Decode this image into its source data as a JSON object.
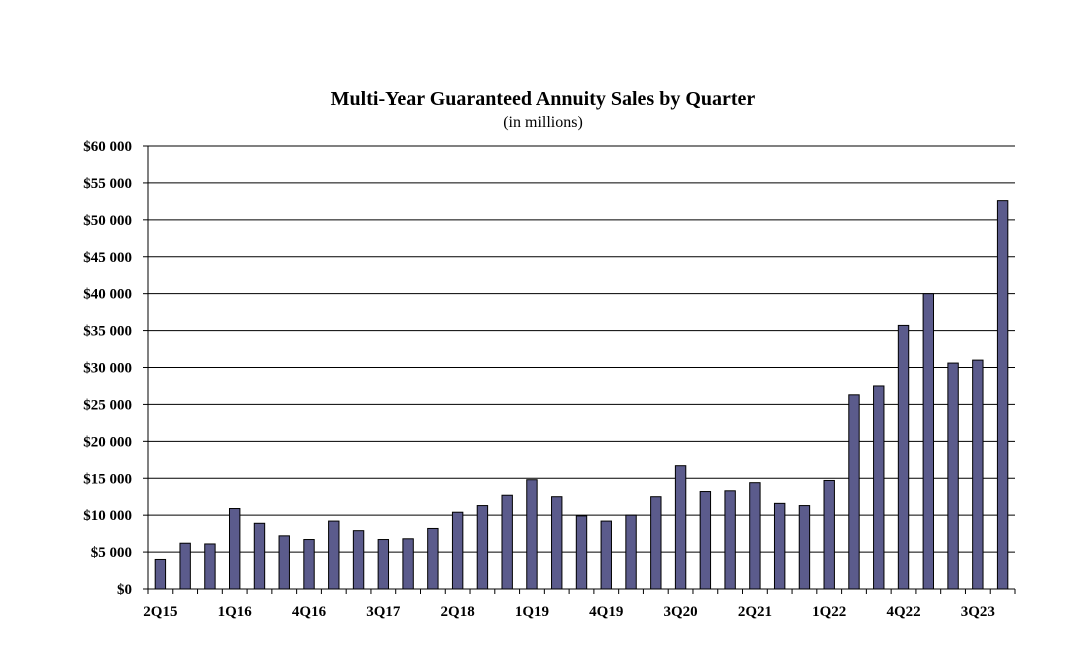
{
  "chart_data": {
    "type": "bar",
    "title": "Multi-Year Guaranteed Annuity Sales by Quarter",
    "subtitle": "(in millions)",
    "xlabel": "",
    "ylabel": "",
    "ylim": [
      0,
      60000
    ],
    "y_ticks": [
      "$0",
      "$5 000",
      "$10 000",
      "$15 000",
      "$20 000",
      "$25 000",
      "$30 000",
      "$35 000",
      "$40 000",
      "$45 000",
      "$50 000",
      "$55 000",
      "$60 000"
    ],
    "x_tick_labels": [
      "2Q15",
      "1Q16",
      "4Q16",
      "3Q17",
      "2Q18",
      "1Q19",
      "4Q19",
      "3Q20",
      "2Q21",
      "1Q22",
      "4Q22",
      "3Q23"
    ],
    "x_tick_every": 3,
    "grid": true,
    "legend": "none",
    "bar_color": "#5b5b8c",
    "categories": [
      "2Q15",
      "3Q15",
      "4Q15",
      "1Q16",
      "2Q16",
      "3Q16",
      "4Q16",
      "1Q17",
      "2Q17",
      "3Q17",
      "4Q17",
      "1Q18",
      "2Q18",
      "3Q18",
      "4Q18",
      "1Q19",
      "2Q19",
      "3Q19",
      "4Q19",
      "1Q20",
      "2Q20",
      "3Q20",
      "4Q20",
      "1Q21",
      "2Q21",
      "3Q21",
      "4Q21",
      "1Q22",
      "2Q22",
      "3Q22",
      "4Q22",
      "1Q23",
      "2Q23",
      "3Q23",
      "4Q23"
    ],
    "values": [
      4000,
      6200,
      6100,
      10900,
      8900,
      7200,
      6700,
      9200,
      7900,
      6700,
      6800,
      8200,
      10400,
      11300,
      12700,
      14800,
      12500,
      9900,
      9200,
      10000,
      12500,
      16700,
      13200,
      13300,
      14400,
      11600,
      11300,
      14700,
      26300,
      27500,
      35700,
      40000,
      30600,
      31000,
      52600
    ]
  }
}
